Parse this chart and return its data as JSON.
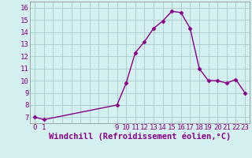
{
  "x": [
    0,
    1,
    9,
    10,
    11,
    12,
    13,
    14,
    15,
    16,
    17,
    18,
    19,
    20,
    21,
    22,
    23
  ],
  "y": [
    7.0,
    6.8,
    8.0,
    9.8,
    12.3,
    13.2,
    14.3,
    14.9,
    15.7,
    15.6,
    14.3,
    11.0,
    10.0,
    10.0,
    9.8,
    10.1,
    9.0
  ],
  "line_color": "#880088",
  "marker": "D",
  "marker_size": 2.5,
  "background_color": "#d4f0f0",
  "grid_color": "#aacccc",
  "xlabel": "Windchill (Refroidissement éolien,°C)",
  "xlabel_color": "#880088",
  "xlabel_fontsize": 7.5,
  "ytick_min": 7,
  "ytick_max": 16,
  "ylim": [
    6.5,
    16.5
  ],
  "xlim": [
    -0.5,
    23.5
  ],
  "tick_color": "#880088",
  "tick_fontsize": 6.5,
  "line_width": 1.0
}
